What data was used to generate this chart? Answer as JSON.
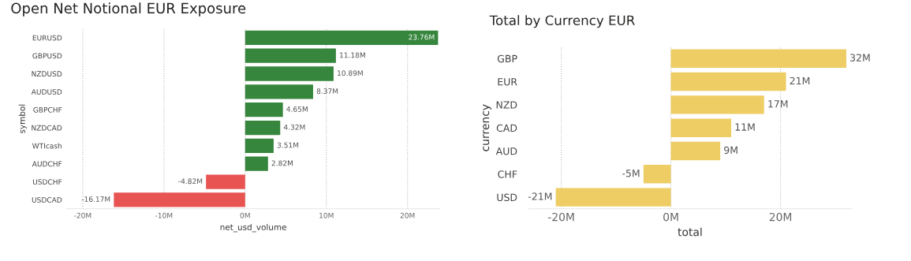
{
  "chart_data": [
    {
      "type": "bar",
      "orientation": "horizontal",
      "title": "Open Net Notional EUR Exposure",
      "xlabel": "net_usd_volume",
      "ylabel": "symbol",
      "categories": [
        "EURUSD",
        "GBPUSD",
        "NZDUSD",
        "AUDUSD",
        "GBPCHF",
        "NZDCAD",
        "WTIcash",
        "AUDCHF",
        "USDCHF",
        "USDCAD"
      ],
      "values": [
        23.76,
        11.18,
        10.89,
        8.37,
        4.65,
        4.32,
        3.51,
        2.82,
        -4.82,
        -16.17
      ],
      "value_labels": [
        "23.76M",
        "11.18M",
        "10.89M",
        "8.37M",
        "4.65M",
        "4.32M",
        "3.51M",
        "2.82M",
        "-4.82M",
        "-16.17M"
      ],
      "colors": [
        "#37863d",
        "#37863d",
        "#37863d",
        "#37863d",
        "#37863d",
        "#37863d",
        "#37863d",
        "#37863d",
        "#e85452",
        "#e85452"
      ],
      "xlim": [
        -22,
        24
      ],
      "xticks": [
        {
          "value": -20,
          "label": "-20M"
        },
        {
          "value": -10,
          "label": "-10M"
        },
        {
          "value": 0,
          "label": "0M"
        },
        {
          "value": 10,
          "label": "10M"
        },
        {
          "value": 20,
          "label": "20M"
        }
      ],
      "grid": "x",
      "legend": false
    },
    {
      "type": "bar",
      "orientation": "horizontal",
      "title": "Total by Currency EUR",
      "xlabel": "total",
      "ylabel": "currency",
      "categories": [
        "GBP",
        "EUR",
        "NZD",
        "CAD",
        "AUD",
        "CHF",
        "USD"
      ],
      "values": [
        32,
        21,
        17,
        11,
        9,
        -5,
        -21
      ],
      "value_labels": [
        "32M",
        "21M",
        "17M",
        "11M",
        "9M",
        "-5M",
        "-21M"
      ],
      "colors": [
        "#edcd64",
        "#edcd64",
        "#edcd64",
        "#edcd64",
        "#edcd64",
        "#edcd64",
        "#edcd64"
      ],
      "xlim": [
        -26,
        33
      ],
      "xticks": [
        {
          "value": -20,
          "label": "-20M"
        },
        {
          "value": 0,
          "label": "0M"
        },
        {
          "value": 20,
          "label": "20M"
        }
      ],
      "grid": "x",
      "legend": false
    }
  ]
}
